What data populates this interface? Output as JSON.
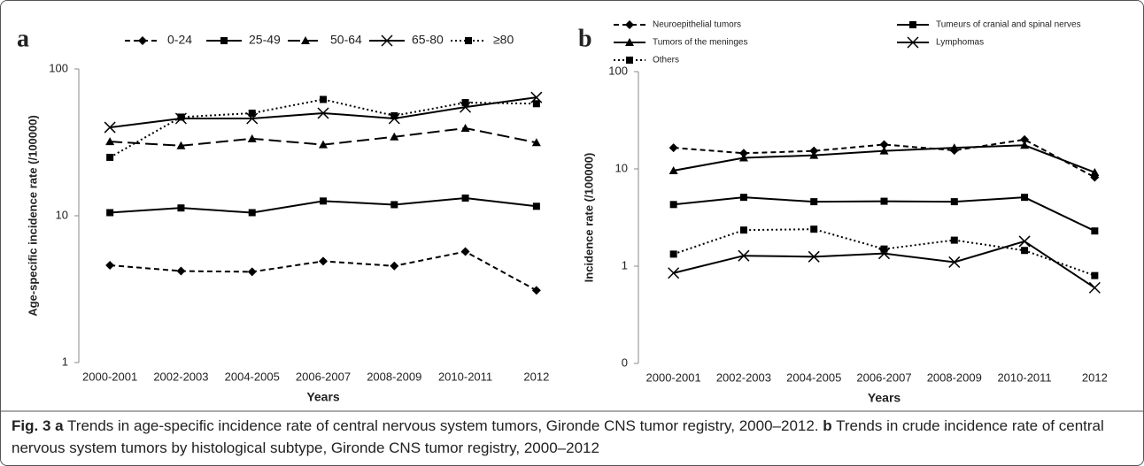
{
  "chart_data": [
    {
      "type": "line",
      "panel": "a",
      "log_scale": true,
      "x_label": "Years",
      "y_label": "Age-specific incidence rate (/100000)",
      "categories": [
        "2000-2001",
        "2002-2003",
        "2004-2005",
        "2006-2007",
        "2008-2009",
        "2010-2011",
        "2012"
      ],
      "ylim": [
        1,
        100
      ],
      "yticks": [
        1,
        10,
        100
      ],
      "legend": "top",
      "series": [
        {
          "name": "0-24",
          "color": "#000000",
          "style": "dashed",
          "marker": "diamond",
          "values": [
            4.6,
            4.2,
            4.15,
            4.9,
            4.55,
            5.7,
            3.1
          ]
        },
        {
          "name": "25-49",
          "color": "#000000",
          "style": "solid",
          "marker": "square",
          "values": [
            10.5,
            11.3,
            10.5,
            12.6,
            11.9,
            13.2,
            11.6
          ]
        },
        {
          "name": "50-64",
          "color": "#000000",
          "style": "long-dash",
          "marker": "triangle",
          "values": [
            32,
            30,
            33.5,
            30.5,
            34.5,
            39.5,
            31.5
          ]
        },
        {
          "name": "65-80",
          "color": "#000000",
          "style": "solid",
          "marker": "x",
          "values": [
            40,
            46,
            46,
            50,
            46,
            55,
            64
          ]
        },
        {
          "name": "≥80",
          "color": "#000000",
          "style": "dotted",
          "marker": "square",
          "values": [
            25,
            47,
            50,
            62,
            48,
            59,
            58
          ]
        }
      ]
    },
    {
      "type": "line",
      "panel": "b",
      "log_scale": true,
      "x_label": "Years",
      "y_label": "Incidence rate (/100000)",
      "categories": [
        "2000-2001",
        "2002-2003",
        "2004-2005",
        "2006-2007",
        "2008-2009",
        "2010-2011",
        "2012"
      ],
      "ylim": [
        0.1,
        100
      ],
      "yticks": [
        {
          "value": 0.1,
          "label": "0"
        },
        1,
        10,
        100
      ],
      "legend": "top",
      "series": [
        {
          "name": "Neuroepithelial tumors",
          "color": "#000000",
          "style": "dashed",
          "marker": "diamond",
          "values": [
            16.5,
            14.5,
            15.3,
            17.8,
            15.5,
            20,
            8.2
          ]
        },
        {
          "name": "Tumeurs of cranial and spinal nerves",
          "color": "#000000",
          "style": "solid",
          "marker": "square",
          "values": [
            4.3,
            5.1,
            4.6,
            4.65,
            4.6,
            5.1,
            2.3
          ]
        },
        {
          "name": "Tumors of the meninges",
          "color": "#000000",
          "style": "solid",
          "marker": "triangle",
          "values": [
            9.6,
            13,
            13.8,
            15.3,
            16.5,
            17.5,
            9.2
          ]
        },
        {
          "name": "Lymphomas",
          "color": "#000000",
          "style": "solid",
          "marker": "x",
          "values": [
            0.85,
            1.28,
            1.25,
            1.35,
            1.1,
            1.8,
            0.6
          ]
        },
        {
          "name": "Others",
          "color": "#000000",
          "style": "dotted",
          "marker": "square",
          "values": [
            1.33,
            2.35,
            2.4,
            1.5,
            1.85,
            1.45,
            0.8
          ]
        }
      ]
    }
  ],
  "caption": {
    "label": "Fig. 3",
    "parts": [
      {
        "tag": "a",
        "text": "Trends in age-specific incidence rate of central nervous system tumors, Gironde CNS tumor registry, 2000–2012."
      },
      {
        "tag": "b",
        "text": "Trends in crude incidence rate of central nervous system tumors by histological subtype, Gironde CNS tumor registry, 2000–2012"
      }
    ]
  }
}
